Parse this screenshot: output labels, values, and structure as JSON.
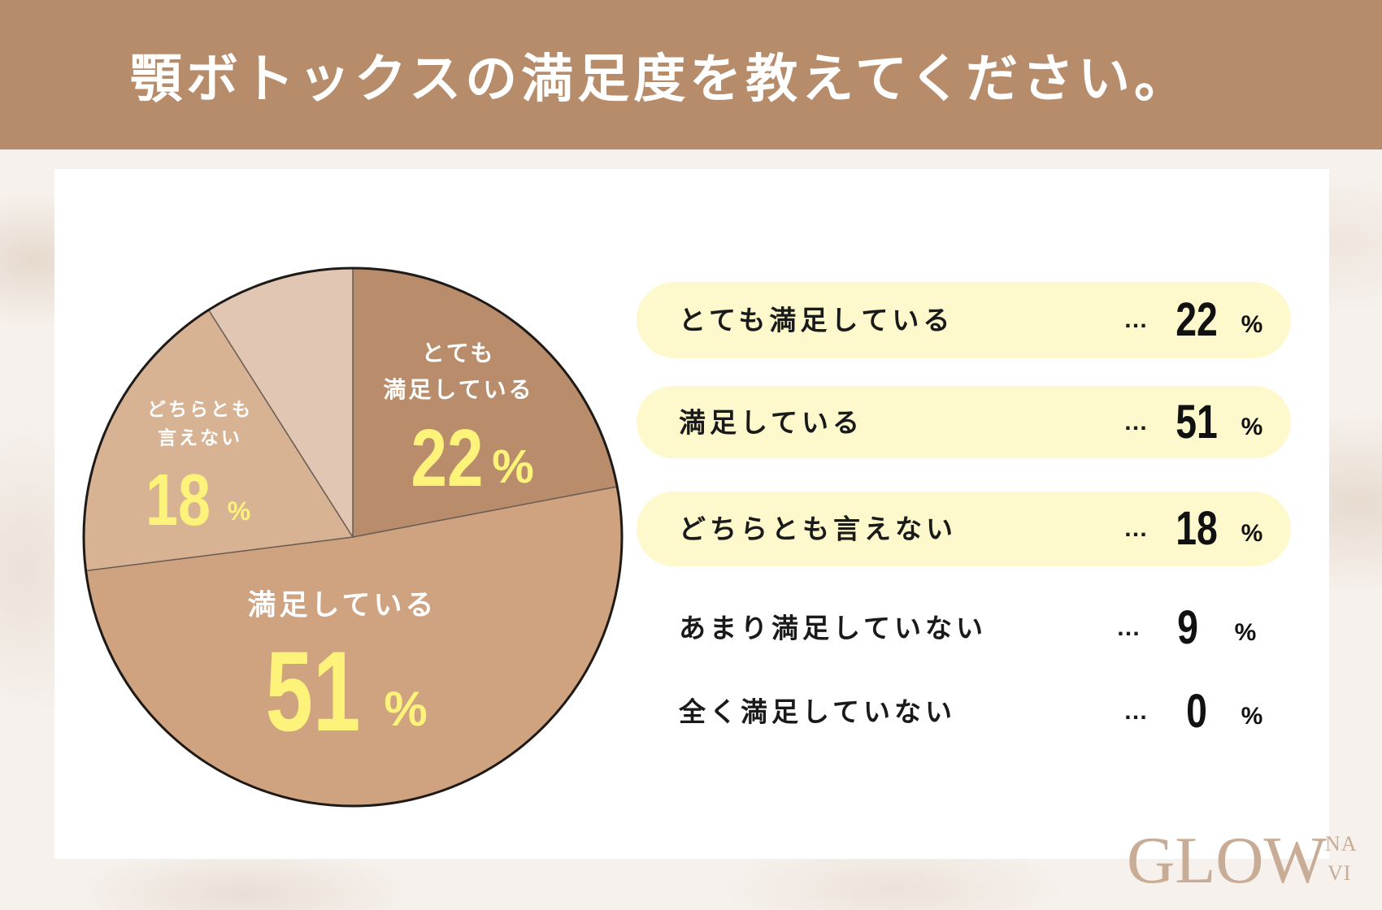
{
  "title": "顎ボトックスの満足度を教えてください。",
  "colors": {
    "header": "#b78c6b",
    "accent_yellow": "#fdf37a",
    "pill": "#fdf9cc",
    "logo": "#c8ac95",
    "slices": [
      "#b98d6b",
      "#cfa280",
      "#d7b293",
      "#e1c6b3",
      "#efe2d8"
    ],
    "outline": "#1e1a17"
  },
  "chart_data": {
    "type": "pie",
    "categories": [
      "とても満足している",
      "満足している",
      "どちらとも言えない",
      "あまり満足していない",
      "全く満足していない"
    ],
    "values": [
      22,
      51,
      18,
      9,
      0
    ],
    "unit": "%",
    "slice_labels": [
      [
        "とても",
        "満足している"
      ],
      [
        "満足している"
      ],
      [
        "どちらとも",
        "言えない"
      ]
    ]
  },
  "list": {
    "leader": "…"
  },
  "logo": {
    "main": "GLOW",
    "sub_top": "NA",
    "sub_bottom": "VI"
  }
}
